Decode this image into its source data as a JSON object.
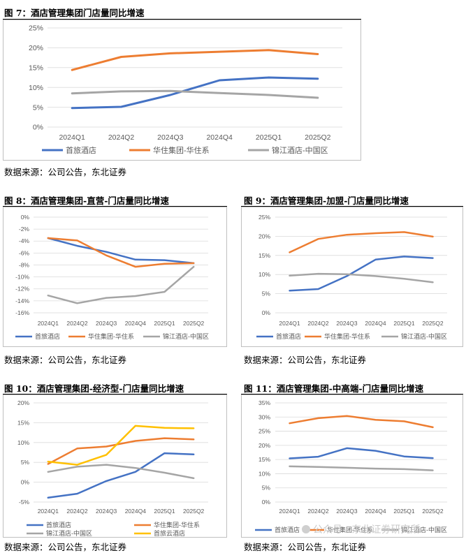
{
  "colors": {
    "blue": "#4472c4",
    "orange": "#ed7d31",
    "gray": "#a5a5a5",
    "yellow": "#ffc000",
    "grid": "#d9d9d9",
    "axis_text": "#595959"
  },
  "source_text": "数据来源：公司公告，东北证券",
  "watermark": "公众号 · 东北证券研究所",
  "chart_data": [
    {
      "id": "fig7",
      "type": "line",
      "title": "图 7：酒店管理集团门店量同比增速",
      "categories": [
        "2024Q1",
        "2024Q2",
        "2024Q3",
        "2024Q4",
        "2025Q1",
        "2025Q2"
      ],
      "ylim": [
        0,
        25
      ],
      "yticks": [
        0,
        5,
        10,
        15,
        20,
        25
      ],
      "ytick_labels": [
        "0%",
        "5%",
        "10%",
        "15%",
        "20%",
        "25%"
      ],
      "series": [
        {
          "name": "首旅酒店",
          "color": "blue",
          "values": [
            4.8,
            5.1,
            8.1,
            11.8,
            12.5,
            12.2
          ]
        },
        {
          "name": "华住集团-华住系",
          "color": "orange",
          "values": [
            14.4,
            17.7,
            18.6,
            19.0,
            19.4,
            18.4
          ]
        },
        {
          "name": "锦江酒店-中国区",
          "color": "gray",
          "values": [
            8.5,
            9.0,
            9.1,
            8.6,
            8.1,
            7.4
          ]
        }
      ]
    },
    {
      "id": "fig8",
      "type": "line",
      "title": "图 8：酒店管理集团-直营-门店量同比增速",
      "categories": [
        "2024Q1",
        "2024Q2",
        "2024Q3",
        "2024Q4",
        "2025Q1",
        "2025Q2"
      ],
      "ylim": [
        -16,
        0
      ],
      "yticks": [
        0,
        -2,
        -4,
        -6,
        -8,
        -10,
        -12,
        -14,
        -16
      ],
      "ytick_labels": [
        "0%",
        "-2%",
        "-4%",
        "-6%",
        "-8%",
        "-10%",
        "-12%",
        "-14%",
        "-16%"
      ],
      "series": [
        {
          "name": "首旅酒店",
          "color": "blue",
          "values": [
            -3.5,
            -4.8,
            -5.8,
            -7.1,
            -7.2,
            -7.7
          ]
        },
        {
          "name": "华住集团-华住系",
          "color": "orange",
          "values": [
            -3.5,
            -3.9,
            -6.4,
            -8.3,
            -7.8,
            -7.7
          ]
        },
        {
          "name": "锦江酒店-中国区",
          "color": "gray",
          "values": [
            -13.1,
            -14.4,
            -13.5,
            -13.2,
            -12.5,
            -8.3
          ]
        }
      ]
    },
    {
      "id": "fig9",
      "type": "line",
      "title": "图 9：酒店管理集团-加盟-门店量同比增速",
      "categories": [
        "2024Q1",
        "2024Q2",
        "2024Q3",
        "2024Q4",
        "2025Q1",
        "2025Q2"
      ],
      "ylim": [
        0,
        25
      ],
      "yticks": [
        0,
        5,
        10,
        15,
        20,
        25
      ],
      "ytick_labels": [
        "0%",
        "5%",
        "10%",
        "15%",
        "20%",
        "25%"
      ],
      "series": [
        {
          "name": "首旅酒店",
          "color": "blue",
          "values": [
            5.8,
            6.2,
            9.6,
            13.9,
            14.7,
            14.3
          ]
        },
        {
          "name": "华住集团-华住系",
          "color": "orange",
          "values": [
            15.8,
            19.3,
            20.4,
            20.8,
            21.1,
            19.9
          ]
        },
        {
          "name": "锦江酒店-中国区",
          "color": "gray",
          "values": [
            9.7,
            10.2,
            10.1,
            9.6,
            8.9,
            8.0
          ]
        }
      ]
    },
    {
      "id": "fig10",
      "type": "line",
      "title": "图 10：酒店管理集团-经济型-门店量同比增速",
      "categories": [
        "2024Q1",
        "2024Q2",
        "2024Q3",
        "2024Q4",
        "2025Q1",
        "2025Q2"
      ],
      "ylim": [
        -5,
        20
      ],
      "yticks": [
        -5,
        0,
        5,
        10,
        15,
        20
      ],
      "ytick_labels": [
        "-5%",
        "0%",
        "5%",
        "10%",
        "15%",
        "20%"
      ],
      "series": [
        {
          "name": "首旅酒店",
          "color": "blue",
          "values": [
            -3.9,
            -2.9,
            0.3,
            2.6,
            7.3,
            7.0
          ]
        },
        {
          "name": "华住集团-华住系",
          "color": "orange",
          "values": [
            4.6,
            8.5,
            9.0,
            10.4,
            11.1,
            10.8
          ]
        },
        {
          "name": "锦江酒店-中国区",
          "color": "gray",
          "values": [
            2.6,
            3.9,
            4.4,
            3.6,
            2.4,
            1.0
          ]
        },
        {
          "name": "首旅云酒店",
          "color": "yellow",
          "values": [
            5.2,
            4.4,
            6.9,
            14.2,
            13.7,
            13.6
          ]
        }
      ]
    },
    {
      "id": "fig11",
      "type": "line",
      "title": "图 11：酒店管理集团-中高端-门店量同比增速",
      "categories": [
        "2024Q1",
        "2024Q2",
        "2024Q3",
        "2024Q4",
        "2025Q1",
        "2025Q2"
      ],
      "ylim": [
        0,
        35
      ],
      "yticks": [
        0,
        5,
        10,
        15,
        20,
        25,
        30,
        35
      ],
      "ytick_labels": [
        "0%",
        "5%",
        "10%",
        "15%",
        "20%",
        "25%",
        "30%",
        "35%"
      ],
      "series": [
        {
          "name": "首旅酒店",
          "color": "blue",
          "values": [
            15.4,
            16.0,
            19.0,
            18.1,
            16.1,
            15.5
          ]
        },
        {
          "name": "华住集团-华住系",
          "color": "orange",
          "values": [
            27.8,
            29.6,
            30.4,
            29.0,
            28.5,
            26.4
          ]
        },
        {
          "name": "锦江酒店-中国区",
          "color": "gray",
          "values": [
            12.6,
            12.4,
            12.1,
            11.8,
            11.6,
            11.2
          ]
        }
      ]
    }
  ]
}
